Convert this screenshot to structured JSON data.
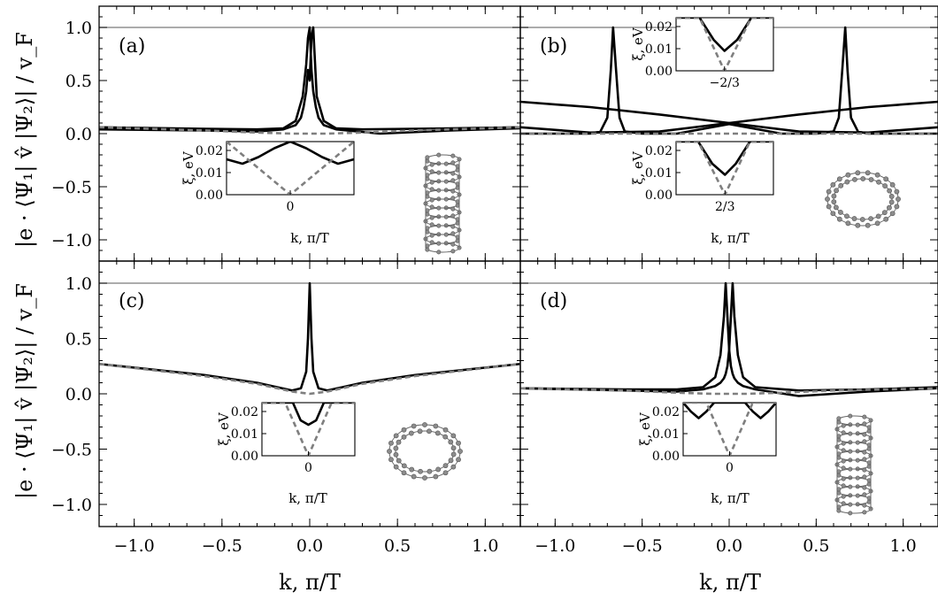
{
  "chart_data": {
    "type": "line",
    "layout": "2x2 grid, shared axes",
    "xlabel": "k, π/T",
    "ylabel": "|e · ⟨Ψ₁| v̂ |Ψ₂⟩| / v_F",
    "xlim": [
      -1.2,
      1.2
    ],
    "ylim": [
      -1.2,
      1.2
    ],
    "xticks": [
      -1.0,
      -0.5,
      0.0,
      0.5,
      1.0
    ],
    "xtick_labels": [
      "−1.0",
      "−0.5",
      "0.0",
      "0.5",
      "1.0"
    ],
    "yticks": [
      -1.0,
      -0.5,
      0.0,
      0.5,
      1.0
    ],
    "ytick_labels": [
      "−1.0",
      "−0.5",
      "0.0",
      "0.5",
      "1.0"
    ],
    "reference_line_y": 1.0,
    "inset_ylabel": "ξ, eV",
    "inset_xlabel": "k, π/T",
    "inset_yticks": [
      0.0,
      0.01,
      0.02
    ],
    "inset_ytick_labels": [
      "0.00",
      "0.01",
      "0.02"
    ],
    "panels": [
      {
        "label": "(a)",
        "series": [
          {
            "style": "solid",
            "x": [
              -1.2,
              -0.6,
              -0.3,
              -0.15,
              -0.08,
              -0.04,
              -0.02,
              -0.01,
              0.0,
              0.01,
              0.02,
              0.035,
              0.05,
              0.08,
              0.15,
              0.4,
              0.8,
              1.2
            ],
            "y": [
              0.06,
              0.045,
              0.04,
              0.05,
              0.12,
              0.35,
              0.65,
              0.9,
              1.0,
              0.6,
              0.4,
              0.25,
              0.15,
              0.08,
              0.04,
              0.0,
              0.03,
              0.05
            ]
          },
          {
            "style": "solid",
            "x": [
              -1.2,
              -0.6,
              -0.3,
              -0.15,
              -0.08,
              -0.05,
              -0.035,
              -0.02,
              -0.01,
              0.0,
              0.01,
              0.02,
              0.04,
              0.08,
              0.15,
              0.3,
              0.6,
              1.2
            ],
            "y": [
              0.04,
              0.03,
              0.02,
              0.04,
              0.08,
              0.15,
              0.25,
              0.4,
              0.6,
              0.5,
              0.9,
              1.0,
              0.35,
              0.12,
              0.05,
              0.04,
              0.045,
              0.06
            ]
          },
          {
            "style": "dashed",
            "x": [
              -1.2,
              -0.6,
              -0.3,
              -0.1,
              0.0,
              0.1,
              0.3,
              0.6,
              1.2
            ],
            "y": [
              0.06,
              0.03,
              0.01,
              0.0,
              0.0,
              0.0,
              0.01,
              0.03,
              0.06
            ]
          }
        ],
        "inset": {
          "ylim": [
            0.0,
            0.024
          ],
          "xticks": [
            0.0
          ],
          "xtick_labels": [
            "0"
          ],
          "xlim": [
            -0.12,
            0.12
          ],
          "series": [
            {
              "style": "solid",
              "x": [
                -0.12,
                -0.09,
                -0.06,
                -0.03,
                0.0,
                0.03,
                0.06,
                0.09,
                0.12
              ],
              "y": [
                0.016,
                0.014,
                0.017,
                0.021,
                0.024,
                0.021,
                0.017,
                0.014,
                0.016
              ]
            },
            {
              "style": "dashed",
              "x": [
                -0.12,
                -0.06,
                0.0,
                0.06,
                0.12
              ],
              "y": [
                0.024,
                0.012,
                0.0,
                0.012,
                0.024
              ]
            }
          ]
        },
        "structure": "armchair-tube-side"
      },
      {
        "label": "(b)",
        "series": [
          {
            "style": "solid",
            "x": [
              -1.2,
              -0.9,
              -0.8,
              -0.74,
              -0.7,
              -0.68,
              -0.667,
              -0.65,
              -0.63,
              -0.6,
              -0.5,
              -0.3,
              0.0,
              0.3,
              0.5,
              0.6,
              0.63,
              0.65,
              0.667,
              0.68,
              0.7,
              0.74,
              0.8,
              0.9,
              1.2
            ],
            "y": [
              0.0,
              0.0,
              0.0,
              0.02,
              0.15,
              0.6,
              1.0,
              0.6,
              0.15,
              0.02,
              0.0,
              0.0,
              0.09,
              0.0,
              0.0,
              0.02,
              0.15,
              0.6,
              1.0,
              0.6,
              0.15,
              0.02,
              0.0,
              0.0,
              0.0
            ]
          },
          {
            "style": "solid",
            "x": [
              -1.2,
              -0.8,
              -0.4,
              0.0,
              0.4,
              0.8,
              1.2
            ],
            "y": [
              0.3,
              0.25,
              0.18,
              0.1,
              0.02,
              0.01,
              0.06
            ]
          },
          {
            "style": "solid",
            "x": [
              -1.2,
              -0.8,
              -0.4,
              0.0,
              0.4,
              0.8,
              1.2
            ],
            "y": [
              0.06,
              0.01,
              0.02,
              0.1,
              0.18,
              0.25,
              0.3
            ]
          },
          {
            "style": "dashed",
            "x": [
              -1.2,
              -0.8,
              -0.7,
              -0.667,
              -0.6,
              -0.4,
              0.0,
              0.4,
              0.6,
              0.667,
              0.7,
              0.8,
              1.2
            ],
            "y": [
              0.0,
              0.0,
              0.0,
              0.0,
              0.0,
              0.0,
              0.0,
              0.0,
              0.0,
              0.0,
              0.0,
              0.0,
              0.0
            ]
          }
        ],
        "insets": [
          {
            "position": "upper",
            "ylim": [
              0.0,
              0.024
            ],
            "xlim": [
              -0.77,
              -0.563
            ],
            "xticks": [
              -0.667
            ],
            "xtick_labels": [
              "−2/3"
            ],
            "series": [
              {
                "style": "solid",
                "x": [
                  -0.77,
                  -0.72,
                  -0.69,
                  -0.667,
                  -0.64,
                  -0.61,
                  -0.563
                ],
                "y": [
                  0.024,
                  0.024,
                  0.014,
                  0.009,
                  0.014,
                  0.024,
                  0.024
                ]
              },
              {
                "style": "dashed",
                "x": [
                  -0.77,
                  -0.72,
                  -0.667,
                  -0.61,
                  -0.563
                ],
                "y": [
                  0.024,
                  0.024,
                  0.0,
                  0.024,
                  0.024
                ]
              }
            ]
          },
          {
            "position": "lower",
            "ylim": [
              0.0,
              0.024
            ],
            "xlim": [
              0.563,
              0.77
            ],
            "xticks": [
              0.667
            ],
            "xtick_labels": [
              "2/3"
            ],
            "series": [
              {
                "style": "solid",
                "x": [
                  0.563,
                  0.61,
                  0.64,
                  0.667,
                  0.69,
                  0.72,
                  0.77
                ],
                "y": [
                  0.024,
                  0.024,
                  0.014,
                  0.009,
                  0.014,
                  0.024,
                  0.024
                ]
              },
              {
                "style": "dashed",
                "x": [
                  0.563,
                  0.61,
                  0.667,
                  0.72,
                  0.77
                ],
                "y": [
                  0.024,
                  0.024,
                  0.0,
                  0.024,
                  0.024
                ]
              }
            ]
          }
        ],
        "structure": "zigzag-ring-top"
      },
      {
        "label": "(c)",
        "series": [
          {
            "style": "solid",
            "x": [
              -1.2,
              -0.6,
              -0.3,
              -0.1,
              -0.05,
              -0.02,
              -0.01,
              0.0,
              0.01,
              0.02,
              0.05,
              0.1,
              0.3,
              0.6,
              1.2
            ],
            "y": [
              0.27,
              0.17,
              0.1,
              0.03,
              0.05,
              0.2,
              0.5,
              1.0,
              0.5,
              0.2,
              0.05,
              0.03,
              0.1,
              0.17,
              0.27
            ]
          },
          {
            "style": "dashed",
            "x": [
              -1.2,
              -0.6,
              -0.3,
              -0.1,
              0.0,
              0.1,
              0.3,
              0.6,
              1.2
            ],
            "y": [
              0.27,
              0.16,
              0.09,
              0.02,
              0.0,
              0.02,
              0.09,
              0.16,
              0.27
            ]
          }
        ],
        "inset": {
          "ylim": [
            0.0,
            0.024
          ],
          "xlim": [
            -0.12,
            0.12
          ],
          "xticks": [
            0.0
          ],
          "xtick_labels": [
            "0"
          ],
          "series": [
            {
              "style": "solid",
              "x": [
                -0.12,
                -0.06,
                -0.04,
                -0.02,
                0.0,
                0.02,
                0.04,
                0.06,
                0.12
              ],
              "y": [
                0.024,
                0.024,
                0.024,
                0.016,
                0.014,
                0.016,
                0.024,
                0.024,
                0.024
              ]
            },
            {
              "style": "dashed",
              "x": [
                -0.12,
                -0.06,
                0.0,
                0.06,
                0.12
              ],
              "y": [
                0.024,
                0.024,
                0.0,
                0.024,
                0.024
              ]
            }
          ]
        },
        "structure": "armchair-ring-top"
      },
      {
        "label": "(d)",
        "series": [
          {
            "style": "solid",
            "x": [
              -1.2,
              -0.6,
              -0.3,
              -0.15,
              -0.08,
              -0.05,
              -0.03,
              -0.02,
              -0.01,
              0.0,
              0.01,
              0.02,
              0.03,
              0.05,
              0.08,
              0.15,
              0.4,
              0.8,
              1.2
            ],
            "y": [
              0.05,
              0.04,
              0.04,
              0.06,
              0.15,
              0.35,
              0.7,
              1.0,
              0.7,
              0.4,
              0.25,
              0.18,
              0.14,
              0.1,
              0.07,
              0.04,
              -0.02,
              0.02,
              0.05
            ]
          },
          {
            "style": "solid",
            "x": [
              -1.2,
              -0.6,
              -0.3,
              -0.15,
              -0.08,
              -0.05,
              -0.03,
              -0.02,
              -0.01,
              0.0,
              0.01,
              0.02,
              0.03,
              0.05,
              0.08,
              0.15,
              0.4,
              0.8,
              1.2
            ],
            "y": [
              0.05,
              0.03,
              0.02,
              0.04,
              0.07,
              0.1,
              0.14,
              0.18,
              0.25,
              0.4,
              0.7,
              1.0,
              0.7,
              0.35,
              0.15,
              0.06,
              0.03,
              0.04,
              0.06
            ]
          },
          {
            "style": "dashed",
            "x": [
              -1.2,
              -0.6,
              -0.3,
              -0.1,
              0.0,
              0.1,
              0.3,
              0.6,
              1.2
            ],
            "y": [
              0.05,
              0.03,
              0.01,
              0.0,
              0.0,
              0.0,
              0.01,
              0.03,
              0.05
            ]
          }
        ],
        "inset": {
          "ylim": [
            0.0,
            0.024
          ],
          "xlim": [
            -0.12,
            0.12
          ],
          "xticks": [
            0.0
          ],
          "xtick_labels": [
            "0"
          ],
          "series": [
            {
              "style": "solid",
              "x": [
                -0.12,
                -0.1,
                -0.08,
                -0.06,
                -0.04,
                -0.03,
                0.03,
                0.04,
                0.06,
                0.08,
                0.1,
                0.12
              ],
              "y": [
                0.024,
                0.02,
                0.017,
                0.02,
                0.024,
                0.024,
                0.024,
                0.024,
                0.02,
                0.017,
                0.02,
                0.024
              ]
            },
            {
              "style": "dashed",
              "x": [
                -0.12,
                -0.06,
                0.0,
                0.06,
                0.12
              ],
              "y": [
                0.024,
                0.024,
                0.0,
                0.024,
                0.024
              ]
            }
          ]
        },
        "structure": "chiral-tube-side"
      }
    ]
  }
}
